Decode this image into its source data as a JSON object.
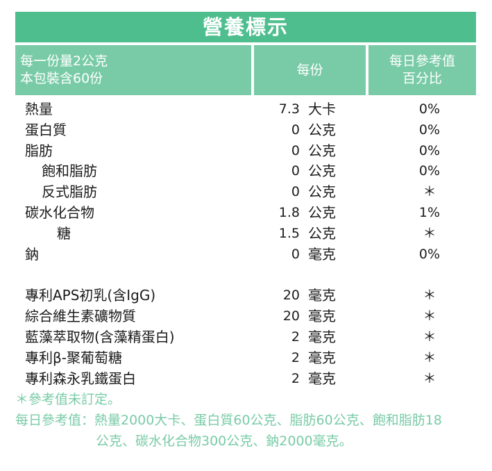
{
  "title": "營養標示",
  "header": {
    "serving_line1": "每一份量2公克",
    "serving_line2": "本包裝含60份",
    "per_serving": "每份",
    "dv_line1": "每日參考值",
    "dv_line2": "百分比"
  },
  "nutrients": [
    {
      "name": "熱量",
      "amount": "7.3",
      "unit": "大卡",
      "dv": "0%"
    },
    {
      "name": "蛋白質",
      "amount": "0",
      "unit": "公克",
      "dv": "0%"
    },
    {
      "name": "脂肪",
      "amount": "0",
      "unit": "公克",
      "dv": "0%"
    },
    {
      "name": "飽和脂肪",
      "amount": "0",
      "unit": "公克",
      "dv": "0%"
    },
    {
      "name": "反式脂肪",
      "amount": "0",
      "unit": "公克",
      "dv": "＊"
    },
    {
      "name": "碳水化合物",
      "amount": "1.8",
      "unit": "公克",
      "dv": "1%"
    },
    {
      "name": "糖",
      "amount": "1.5",
      "unit": "公克",
      "dv": "＊"
    },
    {
      "name": "鈉",
      "amount": "0",
      "unit": "毫克",
      "dv": "0%"
    }
  ],
  "ingredients": [
    {
      "name": "專利APS初乳(含IgG)",
      "amount": "20",
      "unit": "毫克",
      "dv": "＊"
    },
    {
      "name": "綜合維生素礦物質",
      "amount": "20",
      "unit": "毫克",
      "dv": "＊"
    },
    {
      "name": "藍藻萃取物(含藻精蛋白)",
      "amount": "2",
      "unit": "毫克",
      "dv": "＊"
    },
    {
      "name": "專利β-聚葡萄糖",
      "amount": "2",
      "unit": "毫克",
      "dv": "＊"
    },
    {
      "name": "專利森永乳鐵蛋白",
      "amount": "2",
      "unit": "毫克",
      "dv": "＊"
    }
  ],
  "footnotes": {
    "not_established": "＊參考值未訂定。",
    "reference_line1": "每日參考值：熱量2000大卡、蛋白質60公克、脂肪60公克、飽和脂肪18",
    "reference_line2": "公克、碳水化合物300公克、鈉2000毫克。"
  }
}
